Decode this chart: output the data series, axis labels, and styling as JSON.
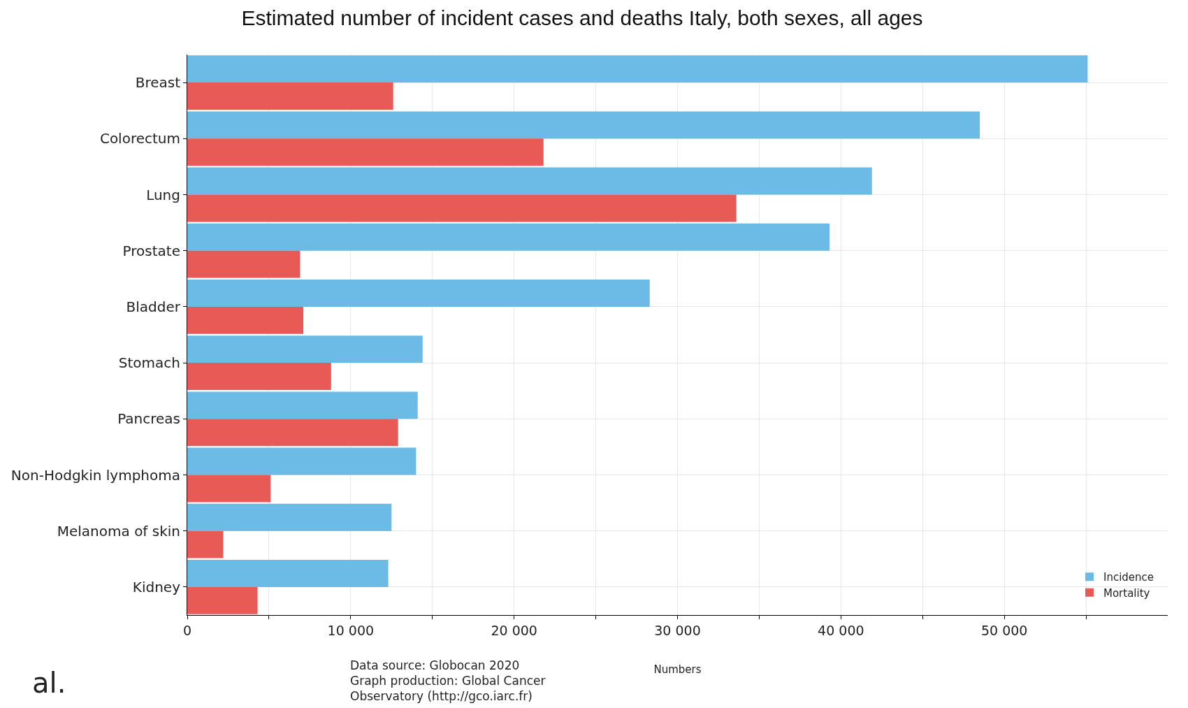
{
  "chart_data": {
    "type": "bar",
    "orientation": "horizontal",
    "title": "Estimated number of incident cases and deaths Italy, both sexes, all ages",
    "xlabel": "Numbers",
    "categories": [
      "Breast",
      "Colorectum",
      "Lung",
      "Prostate",
      "Bladder",
      "Stomach",
      "Pancreas",
      "Non-Hodgkin lymphoma",
      "Melanoma of skin",
      "Kidney"
    ],
    "series": [
      {
        "name": "Incidence",
        "color": "#6bbbe6",
        "values": [
          55100,
          48500,
          41900,
          39300,
          28300,
          14400,
          14100,
          14000,
          12500,
          12300
        ]
      },
      {
        "name": "Mortality",
        "color": "#e85a55",
        "values": [
          12600,
          21800,
          33600,
          6900,
          7100,
          8800,
          12900,
          5100,
          2200,
          4300
        ]
      }
    ],
    "xlim": [
      0,
      60000
    ],
    "xticks": [
      0,
      {
        "value": 5000,
        "label": null
      },
      {
        "value": 10000,
        "label": "10 000"
      },
      {
        "value": 15000,
        "label": null
      },
      {
        "value": 20000,
        "label": "20 000"
      },
      {
        "value": 25000,
        "label": null
      },
      {
        "value": 30000,
        "label": "30 000"
      },
      {
        "value": 35000,
        "label": null
      },
      {
        "value": 40000,
        "label": "40 000"
      },
      {
        "value": 45000,
        "label": null
      },
      {
        "value": 50000,
        "label": "50 000"
      },
      {
        "value": 55000,
        "label": null
      }
    ],
    "grid": true,
    "legend": "bottom right",
    "annotations": [
      "Data source: Globocan 2020\nGraph production: Global Cancer\nObservatory (http://gco.iarc.fr)",
      "al."
    ]
  }
}
